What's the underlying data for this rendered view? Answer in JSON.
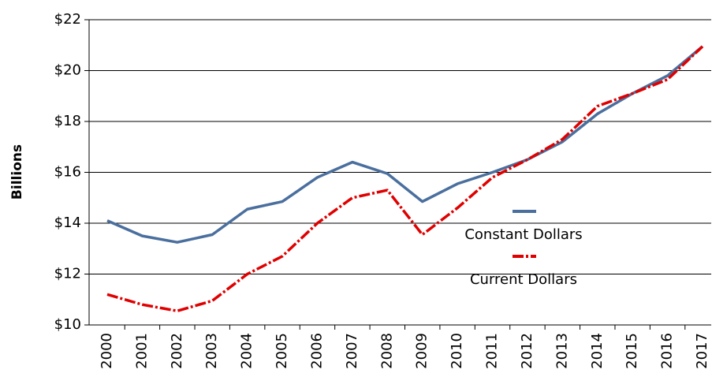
{
  "chart_data": {
    "type": "line",
    "y_label": "Billions",
    "categories": [
      "2000",
      "2001",
      "2002",
      "2003",
      "2004",
      "2005",
      "2006",
      "2007",
      "2008",
      "2009",
      "2010",
      "2011",
      "2012",
      "2013",
      "2014",
      "2015",
      "2016",
      "2017"
    ],
    "series": [
      {
        "name": "Constant Dollars",
        "color": "#4a6f9e",
        "dashed": false,
        "values": [
          14.1,
          13.5,
          13.25,
          13.55,
          14.55,
          14.85,
          15.8,
          16.4,
          15.95,
          14.85,
          15.55,
          16.0,
          16.5,
          17.2,
          18.3,
          19.1,
          19.8,
          20.95
        ]
      },
      {
        "name": "Current Dollars",
        "color": "#e00000",
        "dashed": true,
        "values": [
          11.2,
          10.8,
          10.55,
          10.95,
          12.0,
          12.7,
          14.0,
          15.0,
          15.3,
          13.55,
          14.6,
          15.8,
          16.5,
          17.3,
          18.6,
          19.1,
          19.65,
          20.95
        ]
      }
    ],
    "ylim": [
      10,
      22
    ],
    "yticks": [
      {
        "value": 10,
        "label": "$10"
      },
      {
        "value": 12,
        "label": "$12"
      },
      {
        "value": 14,
        "label": "$14"
      },
      {
        "value": 16,
        "label": "$16"
      },
      {
        "value": 18,
        "label": "$18"
      },
      {
        "value": 20,
        "label": "$20"
      },
      {
        "value": 22,
        "label": "$22"
      }
    ],
    "grid": true
  }
}
